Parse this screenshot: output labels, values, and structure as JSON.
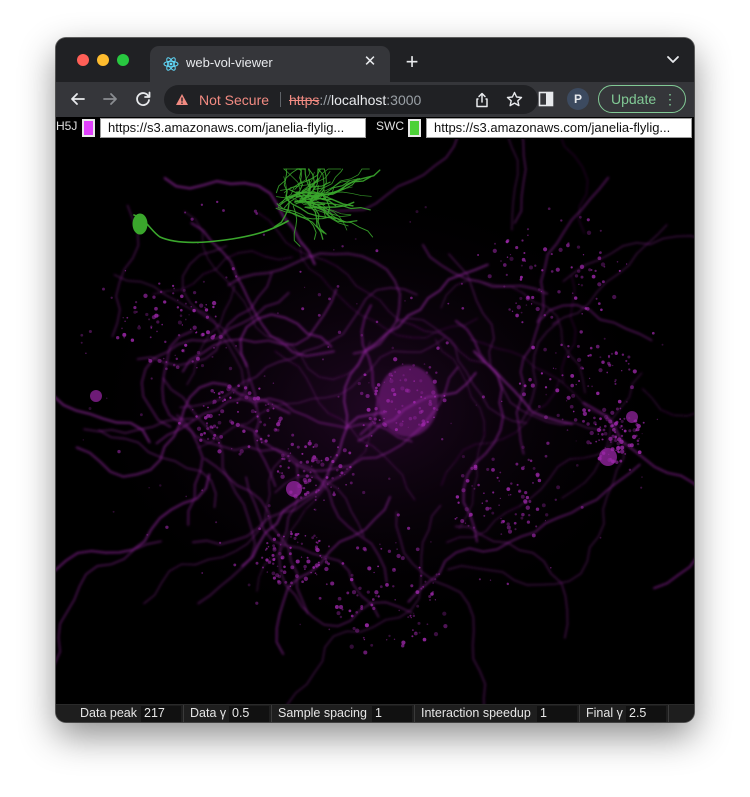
{
  "browser": {
    "tab": {
      "title": "web-vol-viewer",
      "icon": "react-atom-icon"
    },
    "new_tab_label": "+",
    "omnibox": {
      "security_label": "Not Secure",
      "url_scheme": "https",
      "url_separator": "://",
      "url_host": "localhost",
      "url_port": ":3000"
    },
    "profile_initial": "P",
    "update_label": "Update"
  },
  "inputs": {
    "h5j": {
      "label": "H5J",
      "color": "#e040fb",
      "url": "https://s3.amazonaws.com/janelia-flylig..."
    },
    "swc": {
      "label": "SWC",
      "color": "#4cd137",
      "url": "https://s3.amazonaws.com/janelia-flylig..."
    }
  },
  "controls": [
    {
      "label": "Data peak",
      "value": "217"
    },
    {
      "label": "Data γ",
      "value": "0.5"
    },
    {
      "label": "Sample spacing",
      "value": "1"
    },
    {
      "label": "Interaction speedup",
      "value": "1"
    },
    {
      "label": "Final γ",
      "value": "2.5"
    }
  ],
  "colors": {
    "volume": "#9b27a8",
    "neuron": "#3aa62c",
    "accent_update": "#81c995",
    "warning": "#f28b82"
  }
}
